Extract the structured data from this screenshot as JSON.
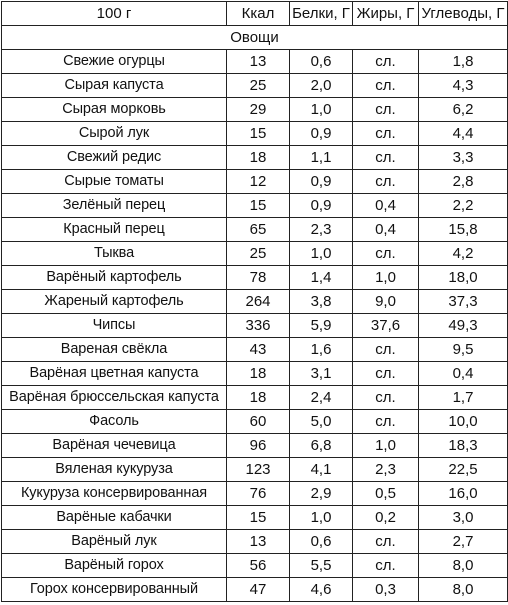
{
  "table": {
    "headers": [
      "100 г",
      "Ккал",
      "Белки, Г",
      "Жиры, Г",
      "Углеводы, Г"
    ],
    "section_title": "Овощи",
    "rows": [
      [
        "Свежие огурцы",
        "13",
        "0,6",
        "сл.",
        "1,8"
      ],
      [
        "Сырая капуста",
        "25",
        "2,0",
        "сл.",
        "4,3"
      ],
      [
        "Сырая морковь",
        "29",
        "1,0",
        "сл.",
        "6,2"
      ],
      [
        "Сырой лук",
        "15",
        "0,9",
        "сл.",
        "4,4"
      ],
      [
        "Свежий редис",
        "18",
        "1,1",
        "сл.",
        "3,3"
      ],
      [
        "Сырые томаты",
        "12",
        "0,9",
        "сл.",
        "2,8"
      ],
      [
        "Зелёный перец",
        "15",
        "0,9",
        "0,4",
        "2,2"
      ],
      [
        "Красный перец",
        "65",
        "2,3",
        "0,4",
        "15,8"
      ],
      [
        "Тыква",
        "25",
        "1,0",
        "сл.",
        "4,2"
      ],
      [
        "Варёный картофель",
        "78",
        "1,4",
        "1,0",
        "18,0"
      ],
      [
        "Жареный картофель",
        "264",
        "3,8",
        "9,0",
        "37,3"
      ],
      [
        "Чипсы",
        "336",
        "5,9",
        "37,6",
        "49,3"
      ],
      [
        "Вареная свёкла",
        "43",
        "1,6",
        "сл.",
        "9,5"
      ],
      [
        "Варёная цветная капуста",
        "18",
        "3,1",
        "сл.",
        "0,4"
      ],
      [
        "Варёная брюссельская капуста",
        "18",
        "2,4",
        "сл.",
        "1,7"
      ],
      [
        "Фасоль",
        "60",
        "5,0",
        "сл.",
        "10,0"
      ],
      [
        "Варёная чечевица",
        "96",
        "6,8",
        "1,0",
        "18,3"
      ],
      [
        "Вяленая кукуруза",
        "123",
        "4,1",
        "2,3",
        "22,5"
      ],
      [
        "Кукуруза консервированная",
        "76",
        "2,9",
        "0,5",
        "16,0"
      ],
      [
        "Варёные кабачки",
        "15",
        "1,0",
        "0,2",
        "3,0"
      ],
      [
        "Варёный лук",
        "13",
        "0,6",
        "сл.",
        "2,7"
      ],
      [
        "Варёный горох",
        "56",
        "5,5",
        "сл.",
        "8,0"
      ],
      [
        "Горох консервированный",
        "47",
        "4,6",
        "0,3",
        "8,0"
      ]
    ]
  }
}
